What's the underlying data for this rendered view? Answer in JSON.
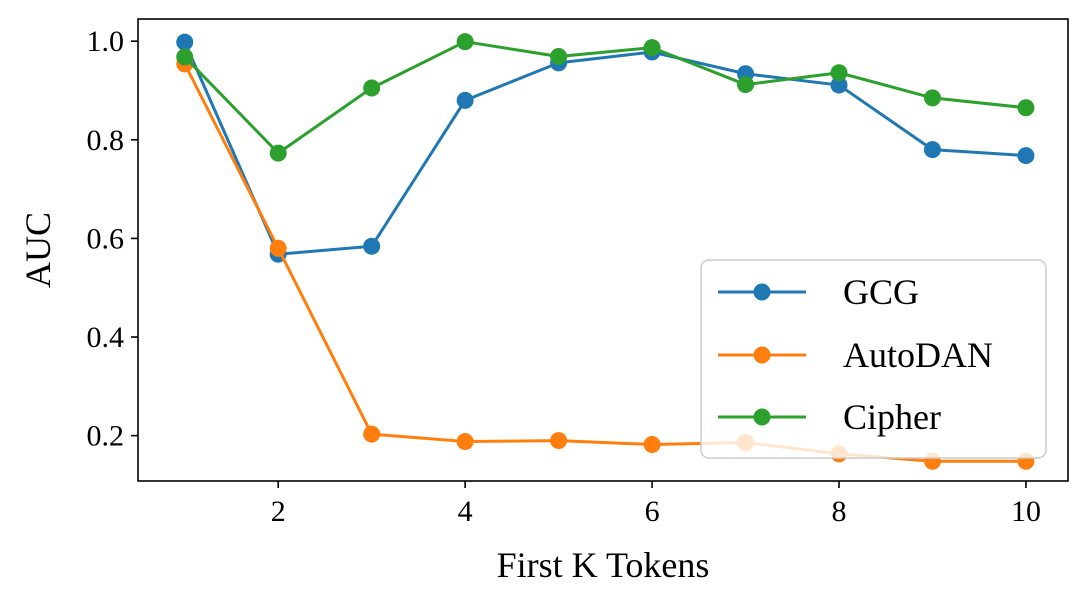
{
  "chart_data": {
    "type": "line",
    "title": "",
    "xlabel": "First K Tokens",
    "ylabel": "AUC",
    "x": [
      1,
      2,
      3,
      4,
      5,
      6,
      7,
      8,
      9,
      10
    ],
    "xlim": [
      0.5,
      10.45
    ],
    "ylim": [
      0.108,
      1.045
    ],
    "xticks": [
      2,
      4,
      6,
      8,
      10
    ],
    "yticks": [
      0.2,
      0.4,
      0.6,
      0.8,
      1.0
    ],
    "xtick_labels": [
      "2",
      "4",
      "6",
      "8",
      "10"
    ],
    "ytick_labels": [
      "0.2",
      "0.4",
      "0.6",
      "0.8",
      "1.0"
    ],
    "grid": false,
    "legend_position": "lower-right",
    "series": [
      {
        "name": "GCG",
        "color": "#1f77b4",
        "values": [
          0.998,
          0.568,
          0.584,
          0.88,
          0.956,
          0.978,
          0.934,
          0.911,
          0.78,
          0.768
        ]
      },
      {
        "name": "AutoDAN",
        "color": "#ff7f0e",
        "values": [
          0.954,
          0.58,
          0.203,
          0.188,
          0.19,
          0.182,
          0.186,
          0.163,
          0.148,
          0.148
        ]
      },
      {
        "name": "Cipher",
        "color": "#2ca02c",
        "values": [
          0.968,
          0.773,
          0.905,
          0.999,
          0.969,
          0.987,
          0.912,
          0.936,
          0.885,
          0.865
        ]
      }
    ]
  }
}
